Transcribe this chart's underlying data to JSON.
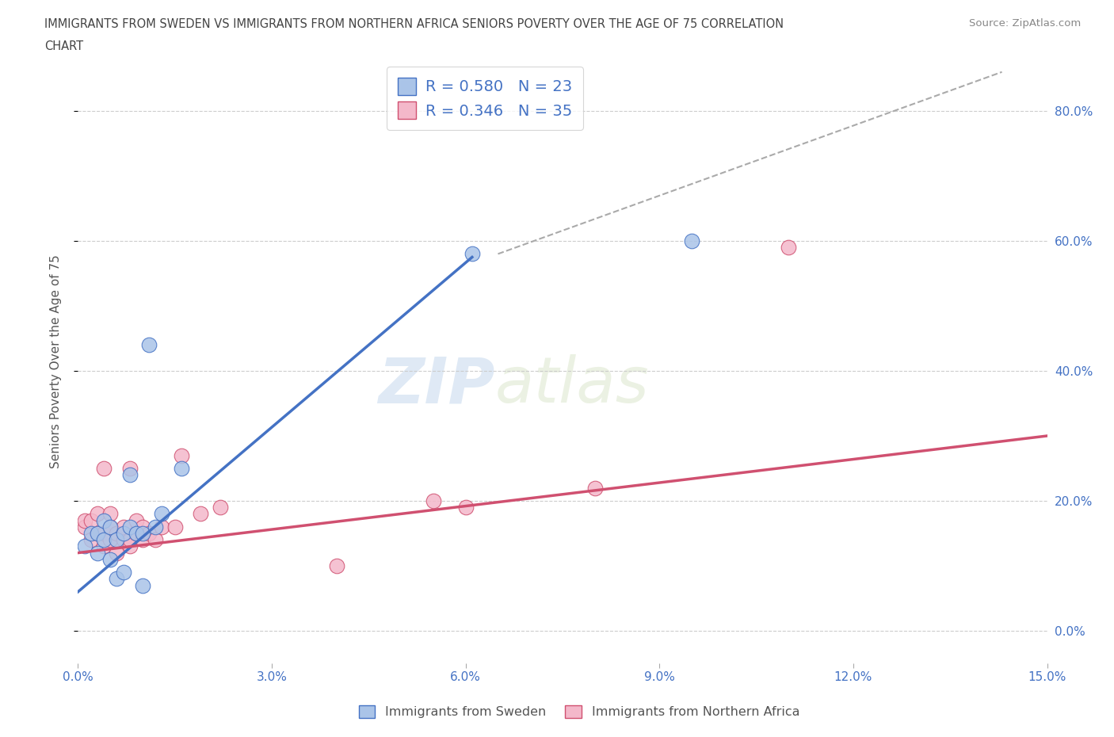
{
  "title_line1": "IMMIGRANTS FROM SWEDEN VS IMMIGRANTS FROM NORTHERN AFRICA SENIORS POVERTY OVER THE AGE OF 75 CORRELATION",
  "title_line2": "CHART",
  "source": "Source: ZipAtlas.com",
  "ylabel": "Seniors Poverty Over the Age of 75",
  "xlim": [
    0.0,
    0.15
  ],
  "ylim": [
    -0.05,
    0.88
  ],
  "yticks": [
    0.0,
    0.2,
    0.4,
    0.6,
    0.8
  ],
  "ytick_labels": [
    "0.0%",
    "20.0%",
    "40.0%",
    "60.0%",
    "80.0%"
  ],
  "xticks": [
    0.0,
    0.03,
    0.06,
    0.09,
    0.12,
    0.15
  ],
  "xtick_labels": [
    "0.0%",
    "3.0%",
    "6.0%",
    "9.0%",
    "12.0%",
    "15.0%"
  ],
  "sweden_color": "#aac4e8",
  "sweden_edge_color": "#4472c4",
  "northern_africa_color": "#f4b8ca",
  "northern_africa_edge_color": "#d05070",
  "watermark": "ZIPatlas",
  "legend_R_sweden": "R = 0.580",
  "legend_N_sweden": "N = 23",
  "legend_R_africa": "R = 0.346",
  "legend_N_africa": "N = 35",
  "sweden_x": [
    0.001,
    0.002,
    0.003,
    0.003,
    0.004,
    0.004,
    0.005,
    0.005,
    0.006,
    0.006,
    0.007,
    0.007,
    0.008,
    0.008,
    0.009,
    0.01,
    0.01,
    0.011,
    0.012,
    0.013,
    0.016,
    0.061,
    0.095
  ],
  "sweden_y": [
    0.13,
    0.15,
    0.12,
    0.15,
    0.14,
    0.17,
    0.11,
    0.16,
    0.14,
    0.08,
    0.09,
    0.15,
    0.16,
    0.24,
    0.15,
    0.15,
    0.07,
    0.44,
    0.16,
    0.18,
    0.25,
    0.58,
    0.6
  ],
  "africa_x": [
    0.001,
    0.001,
    0.002,
    0.002,
    0.003,
    0.003,
    0.004,
    0.004,
    0.004,
    0.005,
    0.005,
    0.005,
    0.006,
    0.006,
    0.007,
    0.007,
    0.008,
    0.008,
    0.008,
    0.009,
    0.009,
    0.01,
    0.01,
    0.011,
    0.012,
    0.013,
    0.015,
    0.016,
    0.019,
    0.022,
    0.04,
    0.055,
    0.06,
    0.08,
    0.11
  ],
  "africa_y": [
    0.16,
    0.17,
    0.14,
    0.17,
    0.15,
    0.18,
    0.13,
    0.15,
    0.25,
    0.14,
    0.16,
    0.18,
    0.12,
    0.15,
    0.14,
    0.16,
    0.13,
    0.14,
    0.25,
    0.15,
    0.17,
    0.14,
    0.16,
    0.15,
    0.14,
    0.16,
    0.16,
    0.27,
    0.18,
    0.19,
    0.1,
    0.2,
    0.19,
    0.22,
    0.59
  ],
  "sweden_line_x": [
    0.0,
    0.061
  ],
  "sweden_line_y": [
    0.06,
    0.575
  ],
  "africa_line_x": [
    0.0,
    0.15
  ],
  "africa_line_y": [
    0.12,
    0.3
  ],
  "dash_line_x": [
    0.065,
    0.143
  ],
  "dash_line_y": [
    0.58,
    0.86
  ],
  "background_color": "#ffffff",
  "grid_color": "#cccccc",
  "title_color": "#444444",
  "tick_color": "#4472c4",
  "legend_text_color": "#4472c4",
  "axis_text_color": "#555555"
}
